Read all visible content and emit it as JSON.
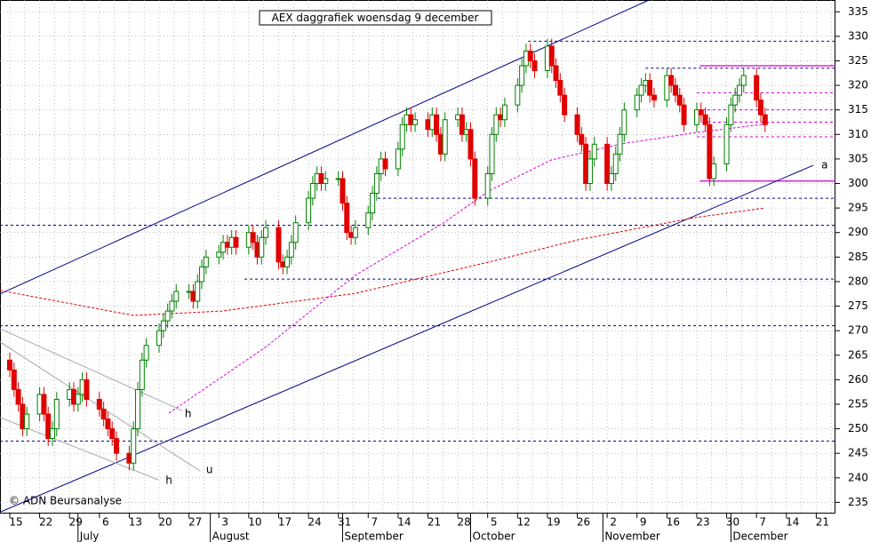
{
  "chart_data": {
    "type": "candlestick",
    "title": "AEX daggrafiek woensdag 9 december",
    "copyright": "© ADN Beursanalyse",
    "xlim": [
      -2.29,
      193.5
    ],
    "ylim": [
      232.9,
      337.4
    ],
    "yticks": [
      235,
      240,
      245,
      250,
      255,
      260,
      265,
      270,
      275,
      280,
      285,
      290,
      295,
      300,
      305,
      310,
      315,
      320,
      325,
      330,
      335
    ],
    "xticks": [
      {
        "value": 0,
        "label": "15"
      },
      {
        "value": 7,
        "label": "22"
      },
      {
        "value": 14,
        "label": "29"
      },
      {
        "value": 21,
        "label": "6"
      },
      {
        "value": 28,
        "label": "13"
      },
      {
        "value": 35,
        "label": "20"
      },
      {
        "value": 42,
        "label": "27"
      },
      {
        "value": 49,
        "label": "3"
      },
      {
        "value": 56,
        "label": "10"
      },
      {
        "value": 63,
        "label": "17"
      },
      {
        "value": 70,
        "label": "24"
      },
      {
        "value": 77,
        "label": "31"
      },
      {
        "value": 84,
        "label": "7"
      },
      {
        "value": 91,
        "label": "14"
      },
      {
        "value": 98,
        "label": "21"
      },
      {
        "value": 105,
        "label": "28"
      },
      {
        "value": 112,
        "label": "5"
      },
      {
        "value": 119,
        "label": "12"
      },
      {
        "value": 126,
        "label": "19"
      },
      {
        "value": 133,
        "label": "26"
      },
      {
        "value": 140,
        "label": "2"
      },
      {
        "value": 147,
        "label": "9"
      },
      {
        "value": 154,
        "label": "16"
      },
      {
        "value": 161,
        "label": "23"
      },
      {
        "value": 168,
        "label": "30"
      },
      {
        "value": 175,
        "label": "7"
      },
      {
        "value": 182,
        "label": "14"
      },
      {
        "value": 189,
        "label": "21"
      }
    ],
    "months": [
      {
        "value": 16,
        "label": "July"
      },
      {
        "value": 47,
        "label": "August"
      },
      {
        "value": 78,
        "label": "September"
      },
      {
        "value": 108,
        "label": "October"
      },
      {
        "value": 139,
        "label": "November"
      },
      {
        "value": 169,
        "label": "December"
      }
    ],
    "up_color": "#008000",
    "down_color": "#e00000",
    "x": [
      0,
      1,
      2,
      3,
      4,
      7,
      8,
      9,
      10,
      11,
      14,
      15,
      16,
      17,
      18,
      21,
      22,
      23,
      24,
      25,
      28,
      29,
      30,
      31,
      32,
      35,
      36,
      37,
      38,
      39,
      42,
      43,
      44,
      45,
      46,
      49,
      50,
      51,
      52,
      53,
      56,
      57,
      58,
      59,
      60,
      63,
      64,
      65,
      66,
      67,
      70,
      71,
      72,
      73,
      74,
      77,
      78,
      79,
      80,
      81,
      84,
      85,
      86,
      87,
      88,
      91,
      92,
      93,
      94,
      95,
      98,
      99,
      100,
      101,
      102,
      105,
      106,
      107,
      108,
      109,
      112,
      113,
      114,
      115,
      116,
      119,
      120,
      121,
      122,
      123,
      126,
      127,
      128,
      129,
      130,
      133,
      134,
      135,
      136,
      137,
      140,
      141,
      142,
      143,
      144,
      147,
      148,
      149,
      150,
      151,
      154,
      155,
      156,
      157,
      158,
      161,
      162,
      163,
      164,
      165,
      168,
      169,
      170,
      171,
      172,
      175,
      176,
      177
    ],
    "open": [
      264,
      262,
      258,
      255,
      250,
      253,
      257,
      253,
      248,
      250,
      256,
      258,
      255,
      257,
      260,
      256,
      254,
      252,
      250,
      248,
      245,
      243,
      250,
      258,
      264,
      267,
      270,
      272,
      274,
      276,
      278,
      278,
      276,
      280,
      283,
      285,
      286,
      288,
      287,
      289,
      287,
      290,
      288,
      285,
      289,
      291,
      284,
      283,
      285,
      288,
      292,
      297,
      300,
      302,
      300,
      301,
      301,
      296,
      290,
      289,
      291,
      294,
      298,
      302,
      305,
      303,
      307,
      312,
      314,
      312,
      313,
      311,
      314,
      310,
      306,
      313,
      314,
      310,
      311,
      305,
      297,
      302,
      310,
      314,
      313,
      316,
      320,
      324,
      327,
      325,
      323,
      328,
      324,
      321,
      318,
      314,
      310,
      308,
      300,
      305,
      308,
      300,
      302,
      306,
      310,
      315,
      318,
      320,
      321,
      318,
      317,
      322,
      320,
      318,
      316,
      312,
      315,
      314,
      312,
      301,
      304,
      312,
      316,
      318,
      320,
      322,
      317,
      314
    ],
    "high": [
      265.5,
      263.5,
      259.5,
      256.5,
      254.5,
      258.5,
      258.5,
      254.5,
      251.5,
      257.5,
      259.5,
      259.5,
      258.5,
      261.5,
      261.5,
      257.5,
      255.5,
      253.5,
      251.5,
      249.5,
      246.5,
      251.5,
      259.5,
      265.5,
      268.5,
      271.5,
      273.5,
      275.5,
      277.5,
      279.5,
      279.5,
      279.5,
      281.5,
      284.5,
      286.5,
      287.5,
      289.5,
      289.5,
      290.5,
      290.5,
      291.5,
      291.5,
      289.5,
      290.5,
      292.5,
      292.5,
      285.5,
      286.5,
      289.5,
      293.5,
      298.5,
      301.5,
      303.5,
      303.5,
      302.5,
      302.5,
      302.5,
      297.5,
      291.5,
      292.5,
      295.5,
      299.5,
      303.5,
      306.5,
      306.5,
      308.5,
      313.5,
      315.5,
      315.5,
      314.5,
      314.5,
      315.5,
      315.5,
      311.5,
      314.5,
      315.5,
      315.5,
      312.5,
      312.5,
      306.5,
      303.5,
      311.5,
      315.5,
      315.5,
      317.5,
      321.5,
      325.5,
      328.5,
      328.5,
      326.5,
      329.5,
      329.5,
      325.5,
      322.5,
      319.5,
      315.5,
      311.5,
      309.5,
      306.5,
      309.5,
      309.5,
      303.5,
      307.5,
      311.5,
      316.5,
      319.5,
      321.5,
      322.5,
      322.5,
      319.5,
      323.5,
      323.5,
      321.5,
      319.5,
      317.5,
      316.5,
      316.5,
      315.5,
      313.5,
      305.5,
      313.5,
      317.5,
      319.5,
      321.5,
      323.5,
      323.5,
      318.5,
      315.5
    ],
    "low": [
      260.5,
      256.5,
      253.5,
      248.5,
      248.5,
      251.5,
      251.5,
      246.5,
      246.5,
      248.5,
      254.5,
      253.5,
      253.5,
      255.5,
      254.5,
      252.5,
      250.5,
      248.5,
      246.5,
      243.5,
      241.5,
      241.5,
      248.5,
      256.5,
      262.5,
      265.5,
      268.5,
      270.5,
      272.5,
      274.5,
      276.5,
      274.5,
      274.5,
      278.5,
      281.5,
      283.5,
      284.5,
      285.5,
      285.5,
      285.5,
      285.5,
      286.5,
      283.5,
      283.5,
      287.5,
      282.5,
      281.5,
      281.5,
      283.5,
      286.5,
      290.5,
      295.5,
      298.5,
      298.5,
      298.5,
      299.5,
      294.5,
      288.5,
      287.5,
      287.5,
      289.5,
      292.5,
      296.5,
      300.5,
      301.5,
      301.5,
      305.5,
      310.5,
      310.5,
      310.5,
      309.5,
      309.5,
      308.5,
      304.5,
      304.5,
      311.5,
      308.5,
      308.5,
      303.5,
      295.5,
      295.5,
      300.5,
      308.5,
      311.5,
      311.5,
      314.5,
      318.5,
      322.5,
      323.5,
      321.5,
      321.5,
      322.5,
      319.5,
      316.5,
      312.5,
      308.5,
      306.5,
      298.5,
      298.5,
      303.5,
      298.5,
      298.5,
      300.5,
      304.5,
      308.5,
      313.5,
      316.5,
      318.5,
      316.5,
      315.5,
      315.5,
      318.5,
      316.5,
      314.5,
      310.5,
      310.5,
      312.5,
      310.5,
      299.5,
      299.5,
      302.5,
      310.5,
      314.5,
      316.5,
      318.5,
      315.5,
      312.5,
      310.5
    ],
    "close": [
      262,
      258,
      255,
      250,
      253,
      257,
      253,
      248,
      250,
      256,
      258,
      255,
      257,
      260,
      256,
      254,
      252,
      250,
      248,
      245,
      243,
      250,
      258,
      264,
      267,
      270,
      272,
      274,
      276,
      278,
      278,
      276,
      280,
      283,
      285,
      286,
      288,
      287,
      289,
      287,
      290,
      288,
      285,
      289,
      291,
      284,
      283,
      285,
      288,
      292,
      297,
      300,
      302,
      300,
      301,
      301,
      296,
      290,
      289,
      291,
      294,
      298,
      302,
      305,
      303,
      307,
      312,
      314,
      312,
      313,
      311,
      314,
      310,
      306,
      313,
      314,
      310,
      311,
      305,
      297,
      302,
      310,
      314,
      313,
      316,
      320,
      324,
      327,
      325,
      323,
      328,
      324,
      321,
      318,
      314,
      310,
      308,
      300,
      305,
      308,
      300,
      302,
      306,
      310,
      315,
      318,
      320,
      321,
      318,
      317,
      322,
      320,
      318,
      316,
      312,
      315,
      314,
      312,
      301,
      304,
      312,
      316,
      318,
      320,
      322,
      317,
      314,
      312
    ],
    "levels": [
      {
        "value": 291.5,
        "from": -2.29,
        "color": "#00008b"
      },
      {
        "value": 271,
        "from": -2.29,
        "color": "#00008b"
      },
      {
        "value": 247.5,
        "from": -2.29,
        "color": "#00008b"
      },
      {
        "value": 297,
        "from": 85,
        "color": "#00008b"
      },
      {
        "value": 280.5,
        "from": 55,
        "color": "#00008b"
      },
      {
        "value": 329,
        "from": 121.5,
        "color": "#00008b"
      },
      {
        "value": 323.5,
        "from": 149,
        "color": "#00008b"
      },
      {
        "value": 318.5,
        "from": 161,
        "color": "#cc00cc"
      },
      {
        "value": 315,
        "from": 161,
        "color": "#cc00cc"
      },
      {
        "value": 312.5,
        "from": 161,
        "color": "#cc00cc"
      },
      {
        "value": 309.5,
        "from": 161,
        "color": "#cc00cc"
      }
    ],
    "solid_levels": [
      {
        "value": 324,
        "from": 161.7,
        "color": "#cc00cc"
      },
      {
        "value": 300.5,
        "from": 161.7,
        "color": "#cc00cc"
      }
    ],
    "trendlines": [
      {
        "color": "#00008b",
        "x": [
          -2.29,
          149.8
        ],
        "y": [
          277.5,
          337.4
        ]
      },
      {
        "color": "#00008b",
        "x": [
          -2.29,
          188.3
        ],
        "y": [
          233,
          303.7
        ]
      },
      {
        "color": "#aaaaaa",
        "x": [
          -2.29,
          40.4
        ],
        "y": [
          270.4,
          253.7
        ]
      },
      {
        "color": "#aaaaaa",
        "x": [
          -2.29,
          44.6
        ],
        "y": [
          267.7,
          241.4
        ]
      },
      {
        "color": "#aaaaaa",
        "x": [
          -2.29,
          34.8
        ],
        "y": [
          252.3,
          239.6
        ]
      }
    ],
    "averages": [
      {
        "color": "#dd0000",
        "x": [
          -2.29,
          29,
          49.8,
          81,
          112.3,
          133.1,
          160.2,
          176.9
        ],
        "y": [
          278.2,
          273.1,
          274,
          277.6,
          284,
          288.5,
          293,
          295
        ]
      },
      {
        "color": "#dd00dd",
        "x": [
          37.3,
          60.2,
          81,
          101.9,
          112.3,
          126.9,
          143.5,
          160.2,
          176.9
        ],
        "y": [
          253.2,
          266.8,
          281.3,
          292.1,
          298.5,
          304.8,
          308.1,
          310.3,
          312.1
        ]
      }
    ],
    "annotations": [
      {
        "text": "a",
        "x": 190.2,
        "y": 303.7
      },
      {
        "text": "h",
        "x": 41,
        "y": 253
      },
      {
        "text": "u",
        "x": 46,
        "y": 241.6
      },
      {
        "text": "h",
        "x": 36.5,
        "y": 239.4
      }
    ]
  }
}
